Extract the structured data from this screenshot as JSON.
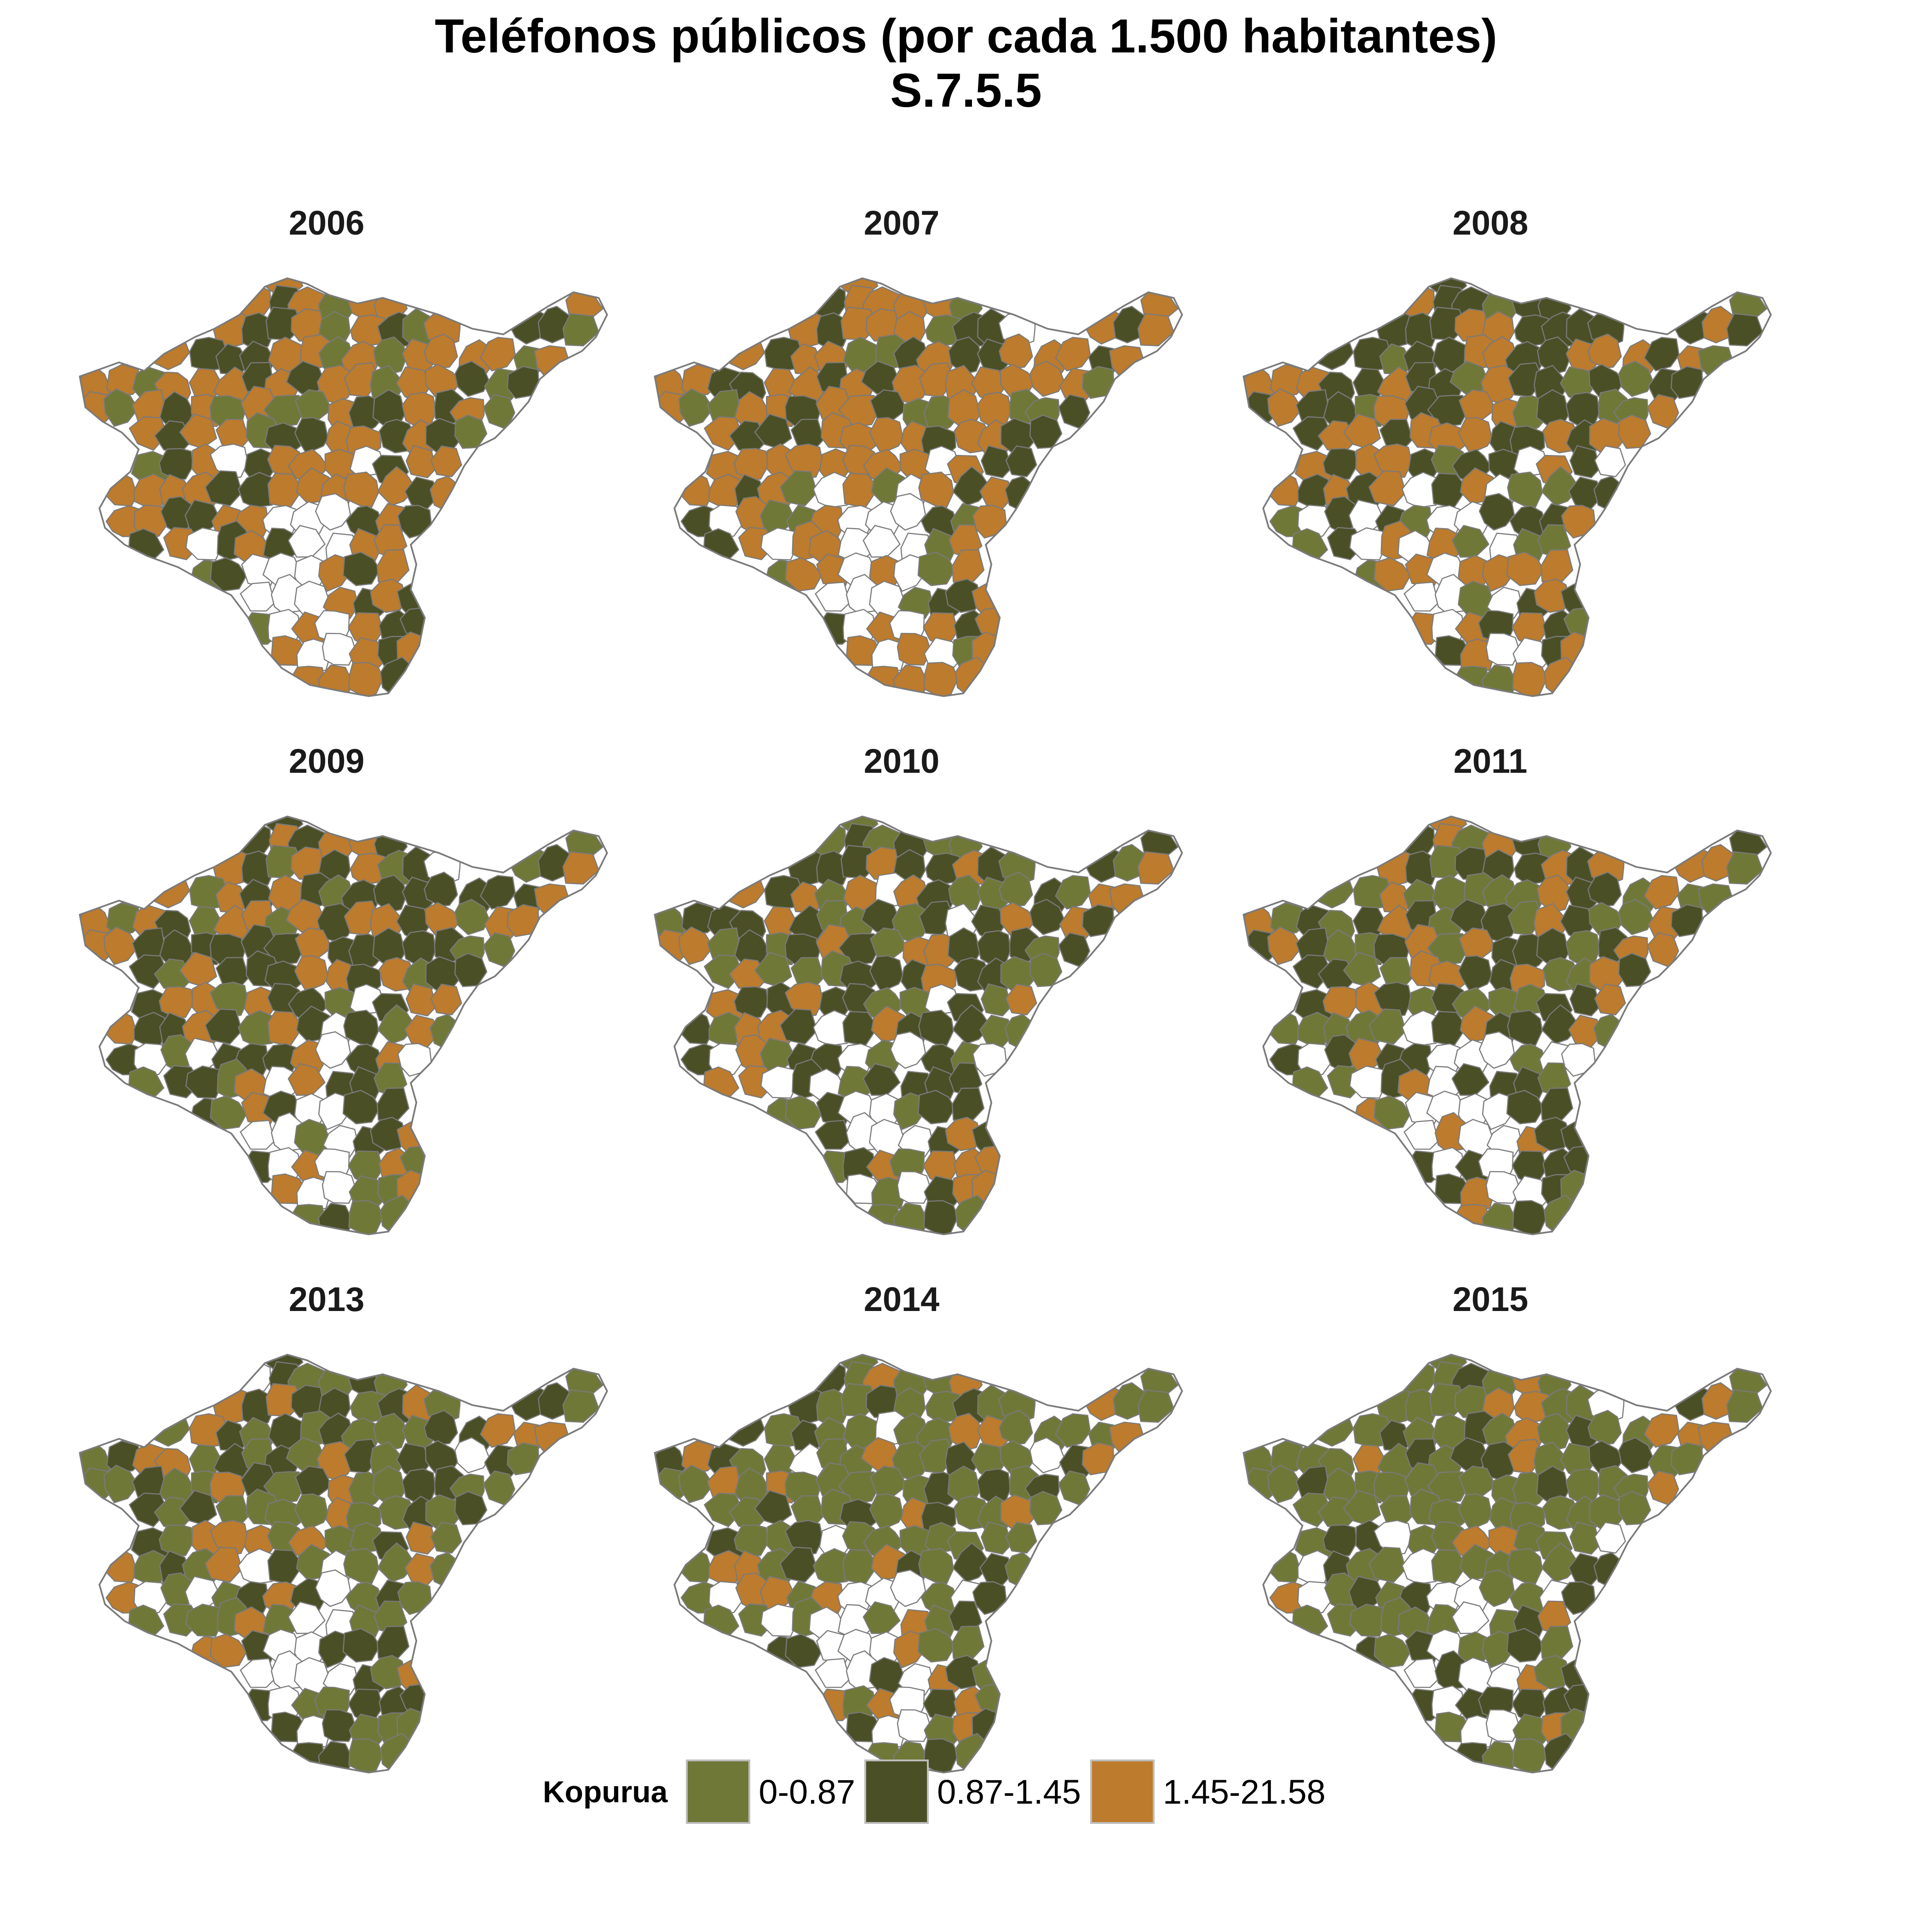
{
  "title": "Teléfonos públicos (por cada 1.500 habitantes)",
  "subtitle": "S.7.5.5",
  "colors": {
    "light_green": "#6f7837",
    "dark_green": "#4a4f26",
    "orange": "#bd7b2d",
    "empty": "#ffffff",
    "border": "#7a7a7a"
  },
  "panels": [
    {
      "year": "2006",
      "mix": {
        "light": 0.15,
        "dark": 0.3,
        "orange": 0.55
      }
    },
    {
      "year": "2007",
      "mix": {
        "light": 0.18,
        "dark": 0.32,
        "orange": 0.5
      }
    },
    {
      "year": "2008",
      "mix": {
        "light": 0.2,
        "dark": 0.4,
        "orange": 0.4
      }
    },
    {
      "year": "2009",
      "mix": {
        "light": 0.25,
        "dark": 0.45,
        "orange": 0.3
      }
    },
    {
      "year": "2010",
      "mix": {
        "light": 0.3,
        "dark": 0.45,
        "orange": 0.25
      }
    },
    {
      "year": "2011",
      "mix": {
        "light": 0.35,
        "dark": 0.4,
        "orange": 0.25
      }
    },
    {
      "year": "2013",
      "mix": {
        "light": 0.45,
        "dark": 0.35,
        "orange": 0.2
      }
    },
    {
      "year": "2014",
      "mix": {
        "light": 0.6,
        "dark": 0.25,
        "orange": 0.15
      }
    },
    {
      "year": "2015",
      "mix": {
        "light": 0.62,
        "dark": 0.26,
        "orange": 0.12
      }
    }
  ],
  "legend": {
    "title": "Kopurua",
    "items": [
      {
        "label": "0-0.87",
        "color": "#6f7837"
      },
      {
        "label": "0.87-1.45",
        "color": "#4a4f26"
      },
      {
        "label": "1.45-21.58",
        "color": "#bd7b2d"
      }
    ]
  }
}
